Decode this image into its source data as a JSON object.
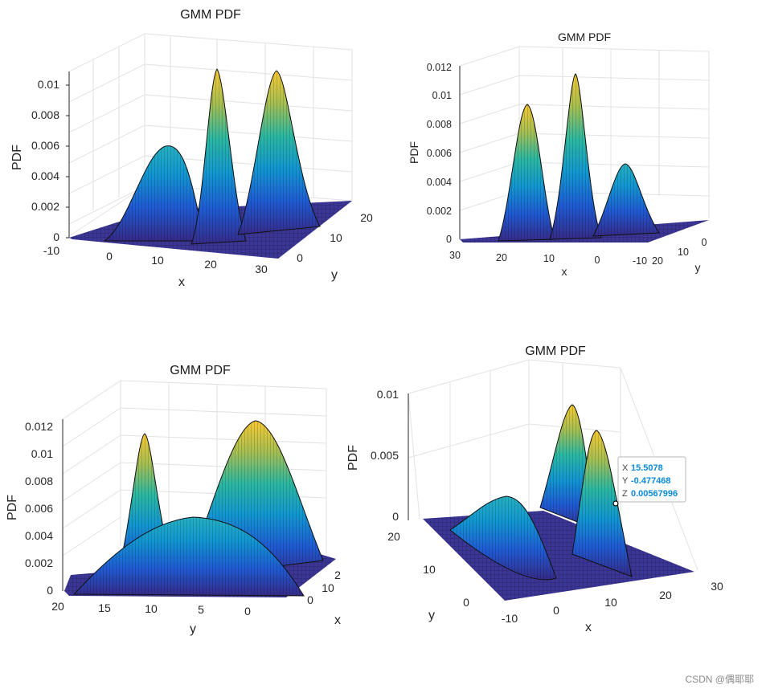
{
  "chart_data": [
    {
      "type": "surface",
      "title": "GMM PDF",
      "xlabel": "x",
      "ylabel": "y",
      "zlabel": "PDF",
      "x_ticks": [
        "-10",
        "0",
        "10",
        "20",
        "30"
      ],
      "y_ticks": [
        "0",
        "10",
        "20"
      ],
      "z_ticks": [
        "0",
        "0.002",
        "0.004",
        "0.006",
        "0.008",
        "0.01"
      ],
      "xlim": [
        -10,
        30
      ],
      "ylim": [
        -10,
        20
      ],
      "zlim": [
        0,
        0.011
      ],
      "colormap": "parula",
      "peaks": [
        {
          "x": 3,
          "y": 10,
          "z": 0.0058
        },
        {
          "x": 10,
          "y": 5,
          "z": 0.0111
        },
        {
          "x": 20,
          "y": 2,
          "z": 0.011
        }
      ]
    },
    {
      "type": "surface",
      "title": "GMM PDF",
      "xlabel": "x",
      "ylabel": "y",
      "zlabel": "PDF",
      "x_ticks": [
        "30",
        "20",
        "10",
        "0",
        "-10"
      ],
      "y_ticks": [
        "20",
        "10",
        "0"
      ],
      "z_ticks": [
        "0",
        "0.002",
        "0.004",
        "0.006",
        "0.008",
        "0.01",
        "0.012"
      ],
      "xlim": [
        -10,
        30
      ],
      "ylim": [
        -10,
        20
      ],
      "zlim": [
        0,
        0.012
      ],
      "colormap": "parula",
      "peaks": [
        {
          "x": 20,
          "y": 2,
          "z": 0.0093
        },
        {
          "x": 10,
          "y": 5,
          "z": 0.0115
        },
        {
          "x": 3,
          "y": 10,
          "z": 0.0054
        }
      ]
    },
    {
      "type": "surface",
      "title": "GMM PDF",
      "xlabel": "x",
      "ylabel": "y",
      "zlabel": "PDF",
      "x_ticks": [
        "0",
        "10",
        "2"
      ],
      "y_ticks": [
        "20",
        "15",
        "10",
        "5",
        "0"
      ],
      "z_ticks": [
        "0",
        "0.002",
        "0.004",
        "0.006",
        "0.008",
        "0.01",
        "0.012"
      ],
      "ylim": [
        -5,
        20
      ],
      "zlim": [
        0,
        0.012
      ],
      "colormap": "parula",
      "peaks": [
        {
          "y": 15,
          "z": 0.0113
        },
        {
          "y": 0,
          "z": 0.0124
        },
        {
          "y": 8,
          "z": 0.0057
        }
      ]
    },
    {
      "type": "surface",
      "title": "GMM PDF",
      "xlabel": "x",
      "ylabel": "y",
      "zlabel": "PDF",
      "x_ticks": [
        "-10",
        "0",
        "10",
        "20",
        "30"
      ],
      "y_ticks": [
        "0",
        "10",
        "20"
      ],
      "z_ticks": [
        "0",
        "0.005",
        "0.01"
      ],
      "xlim": [
        -10,
        30
      ],
      "ylim": [
        -10,
        20
      ],
      "zlim": [
        0,
        0.011
      ],
      "colormap": "parula",
      "datatip": {
        "x_label": "X",
        "x_value": "15.5078",
        "y_label": "Y",
        "y_value": "-0.477468",
        "z_label": "Z",
        "z_value": "0.00567996"
      }
    }
  ],
  "watermark": "CSDN @偶耶耶"
}
